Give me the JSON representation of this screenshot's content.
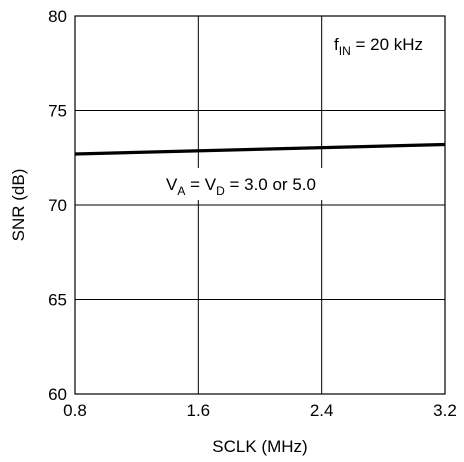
{
  "chart_data": {
    "type": "line",
    "xlabel": "SCLK (MHz)",
    "ylabel": "SNR (dB)",
    "xlim": [
      0.8,
      3.2
    ],
    "ylim": [
      60,
      80
    ],
    "x_ticks": [
      "0.8",
      "1.6",
      "2.4",
      "3.2"
    ],
    "y_ticks": [
      "60",
      "65",
      "70",
      "75",
      "80"
    ],
    "grid": true,
    "series": [
      {
        "x": [
          0.8,
          3.2
        ],
        "y": [
          72.7,
          73.2
        ],
        "color": "#000000"
      }
    ],
    "annotations": {
      "fin": {
        "main": "f",
        "sub": "IN",
        "rest": " = 20 kHz"
      },
      "supply": {
        "v1": "V",
        "s1": "A",
        "mid": " = V",
        "s2": "D",
        "rest": " = 3.0 or 5.0"
      }
    }
  }
}
